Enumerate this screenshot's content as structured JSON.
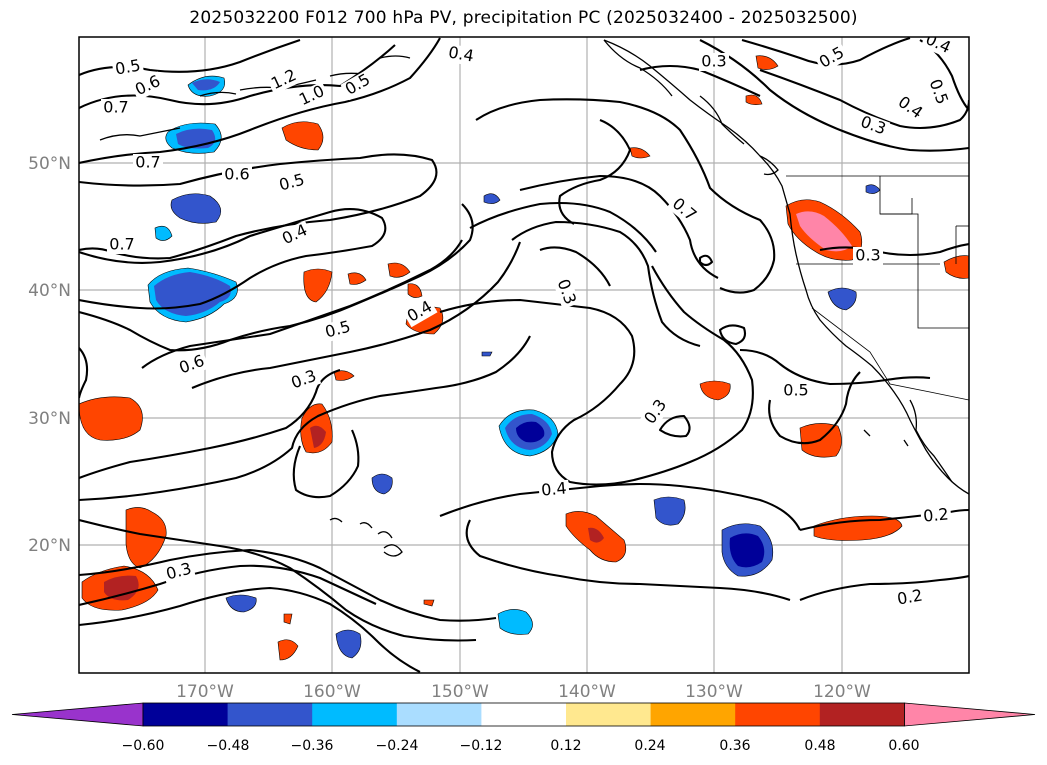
{
  "title": "2025032200 F012 700 hPa PV, precipitation PC (2025032400 - 2025032500)",
  "axes": {
    "lat_labels": [
      "50°N",
      "40°N",
      "30°N",
      "20°N"
    ],
    "lon_labels": [
      "170°W",
      "160°W",
      "150°W",
      "140°W",
      "130°W",
      "120°W"
    ]
  },
  "colorbar": {
    "colors": [
      "#9933cc",
      "#000099",
      "#3355cc",
      "#00bbff",
      "#aaddff",
      "#ffffff",
      "#ffe88f",
      "#ffa500",
      "#ff4500",
      "#b22222",
      "#ff85a8"
    ],
    "tick_labels": [
      "−0.60",
      "−0.48",
      "−0.36",
      "−0.24",
      "−0.12",
      "0.12",
      "0.24",
      "0.36",
      "0.48",
      "0.60"
    ]
  },
  "contour_labels": [
    {
      "text": "0.5"
    },
    {
      "text": "0.6"
    },
    {
      "text": "0.7"
    },
    {
      "text": "1.2"
    },
    {
      "text": "1.0"
    },
    {
      "text": "0.5"
    },
    {
      "text": "0.4"
    },
    {
      "text": "0.7"
    },
    {
      "text": "0.6"
    },
    {
      "text": "0.5"
    },
    {
      "text": "0.4"
    },
    {
      "text": "0.7"
    },
    {
      "text": "0.4"
    },
    {
      "text": "0.5"
    },
    {
      "text": "0.6"
    },
    {
      "text": "0.3"
    },
    {
      "text": "0.3"
    },
    {
      "text": "0.4"
    },
    {
      "text": "0.3"
    },
    {
      "text": "0.7"
    },
    {
      "text": "0.3"
    },
    {
      "text": "0.5"
    },
    {
      "text": "0.3"
    },
    {
      "text": "0.3"
    },
    {
      "text": "0.5"
    },
    {
      "text": "0.4"
    },
    {
      "text": "0.3"
    },
    {
      "text": "0.2"
    },
    {
      "text": "0.2"
    },
    {
      "text": "0.5"
    },
    {
      "text": "0.4"
    }
  ]
}
